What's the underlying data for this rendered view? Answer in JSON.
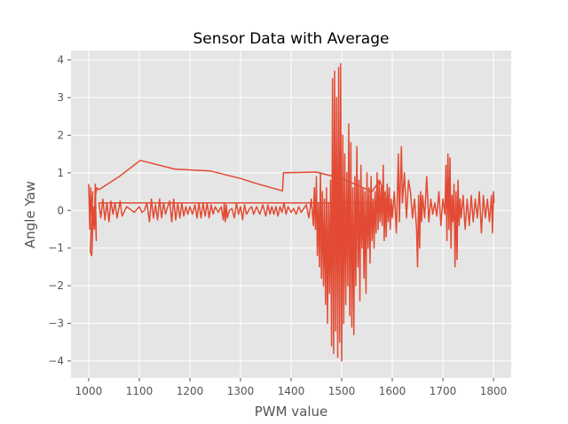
{
  "chart_data": {
    "type": "line",
    "title": "Sensor Data with Average",
    "xlabel": "PWM value",
    "ylabel": "Angle Yaw",
    "xlim": [
      965,
      1835
    ],
    "ylim": [
      -4.45,
      4.25
    ],
    "xticks": [
      1000,
      1100,
      1200,
      1300,
      1400,
      1500,
      1600,
      1700,
      1800
    ],
    "yticks": [
      -4,
      -3,
      -2,
      -1,
      0,
      1,
      2,
      3,
      4
    ],
    "grid": true,
    "legend": "none",
    "colors": {
      "line": "#e24a33",
      "plot_bg": "#e5e5e5",
      "grid": "#ffffff",
      "tick_text": "#555555"
    },
    "series": [
      {
        "points": [
          [
            1000,
            0.7
          ],
          [
            1002,
            -0.5
          ],
          [
            1004,
            0.6
          ],
          [
            1006,
            -0.2
          ],
          [
            1008,
            0.5
          ],
          [
            1003,
            -1.1
          ],
          [
            1006,
            -1.2
          ],
          [
            1009,
            0.1
          ],
          [
            1011,
            -0.5
          ],
          [
            1013,
            0.7
          ],
          [
            1015,
            -0.8
          ],
          [
            1012,
            0.3
          ],
          [
            1016,
            0.6
          ],
          [
            1020,
            0.55
          ],
          [
            1060,
            0.9
          ],
          [
            1102,
            1.33
          ],
          [
            1170,
            1.1
          ],
          [
            1240,
            1.05
          ],
          [
            1300,
            0.85
          ],
          [
            1330,
            0.72
          ],
          [
            1383,
            0.52
          ],
          [
            1385,
            1.0
          ],
          [
            1450,
            1.02
          ],
          [
            1500,
            0.85
          ],
          [
            1560,
            0.5
          ],
          [
            1575,
            0.8
          ],
          [
            1590,
            0.2
          ],
          [
            1020,
            0.2
          ],
          [
            1024,
            -0.2
          ],
          [
            1028,
            0.3
          ],
          [
            1032,
            -0.25
          ],
          [
            1036,
            0.2
          ],
          [
            1040,
            -0.3
          ],
          [
            1044,
            0.25
          ],
          [
            1048,
            -0.1
          ],
          [
            1052,
            0.2
          ],
          [
            1056,
            -0.2
          ],
          [
            1062,
            0.25
          ],
          [
            1066,
            -0.15
          ],
          [
            1075,
            0.1
          ],
          [
            1090,
            -0.05
          ],
          [
            1100,
            0.1
          ],
          [
            1105,
            -0.05
          ],
          [
            1110,
            0.0
          ],
          [
            1115,
            0.2
          ],
          [
            1120,
            -0.3
          ],
          [
            1124,
            0.3
          ],
          [
            1128,
            -0.2
          ],
          [
            1132,
            0.15
          ],
          [
            1136,
            -0.25
          ],
          [
            1140,
            0.3
          ],
          [
            1144,
            -0.2
          ],
          [
            1148,
            0.2
          ],
          [
            1152,
            -0.1
          ],
          [
            1155,
            0.05
          ],
          [
            1160,
            0.25
          ],
          [
            1164,
            -0.3
          ],
          [
            1168,
            0.3
          ],
          [
            1172,
            -0.25
          ],
          [
            1176,
            0.2
          ],
          [
            1180,
            -0.2
          ],
          [
            1184,
            0.2
          ],
          [
            1188,
            -0.15
          ],
          [
            1192,
            0.1
          ],
          [
            1196,
            -0.1
          ],
          [
            1200,
            0.1
          ],
          [
            1205,
            -0.1
          ],
          [
            1210,
            0.15
          ],
          [
            1214,
            -0.2
          ],
          [
            1218,
            0.2
          ],
          [
            1222,
            -0.2
          ],
          [
            1226,
            0.2
          ],
          [
            1230,
            -0.15
          ],
          [
            1234,
            0.2
          ],
          [
            1238,
            -0.2
          ],
          [
            1242,
            0.15
          ],
          [
            1246,
            -0.1
          ],
          [
            1250,
            0.1
          ],
          [
            1256,
            -0.05
          ],
          [
            1262,
            0.1
          ],
          [
            1266,
            -0.25
          ],
          [
            1268,
            0.2
          ],
          [
            1270,
            -0.3
          ],
          [
            1272,
            0.15
          ],
          [
            1274,
            -0.2
          ],
          [
            1278,
            0.0
          ],
          [
            1283,
            0.05
          ],
          [
            1288,
            -0.2
          ],
          [
            1292,
            0.2
          ],
          [
            1296,
            -0.1
          ],
          [
            1300,
            0.1
          ],
          [
            1304,
            -0.25
          ],
          [
            1308,
            0.15
          ],
          [
            1312,
            -0.1
          ],
          [
            1318,
            0.05
          ],
          [
            1322,
            0.1
          ],
          [
            1326,
            -0.1
          ],
          [
            1332,
            0.1
          ],
          [
            1338,
            -0.1
          ],
          [
            1344,
            0.15
          ],
          [
            1350,
            -0.15
          ],
          [
            1354,
            0.15
          ],
          [
            1358,
            -0.1
          ],
          [
            1362,
            0.1
          ],
          [
            1366,
            -0.1
          ],
          [
            1370,
            0.1
          ],
          [
            1374,
            -0.15
          ],
          [
            1378,
            0.1
          ],
          [
            1382,
            -0.05
          ],
          [
            1386,
            0.2
          ],
          [
            1390,
            -0.1
          ],
          [
            1394,
            0.1
          ],
          [
            1400,
            -0.05
          ],
          [
            1405,
            0.05
          ],
          [
            1410,
            -0.1
          ],
          [
            1415,
            0.1
          ],
          [
            1420,
            -0.05
          ],
          [
            1425,
            0.05
          ],
          [
            1430,
            0.15
          ],
          [
            1435,
            -0.2
          ],
          [
            1440,
            0.3
          ],
          [
            1444,
            -0.4
          ],
          [
            1446,
            0.6
          ],
          [
            1448,
            -0.5
          ],
          [
            1450,
            0.9
          ],
          [
            1452,
            -1.2
          ],
          [
            1454,
            0.2
          ],
          [
            1456,
            -1.5
          ],
          [
            1458,
            1.0
          ],
          [
            1460,
            -1.8
          ],
          [
            1462,
            0.5
          ],
          [
            1464,
            -2.0
          ],
          [
            1466,
            0.3
          ],
          [
            1468,
            -2.5
          ],
          [
            1470,
            0.6
          ],
          [
            1472,
            -3.0
          ],
          [
            1474,
            0.2
          ],
          [
            1476,
            -2.2
          ],
          [
            1478,
            0.8
          ],
          [
            1480,
            -3.6
          ],
          [
            1482,
            3.5
          ],
          [
            1484,
            -3.8
          ],
          [
            1486,
            3.7
          ],
          [
            1488,
            -3.2
          ],
          [
            1490,
            3.0
          ],
          [
            1492,
            -3.9
          ],
          [
            1494,
            3.8
          ],
          [
            1496,
            -3.5
          ],
          [
            1498,
            3.9
          ],
          [
            1500,
            -4.0
          ],
          [
            1502,
            2.0
          ],
          [
            1504,
            -3.0
          ],
          [
            1506,
            1.5
          ],
          [
            1508,
            -2.5
          ],
          [
            1510,
            1.0
          ],
          [
            1512,
            -2.0
          ],
          [
            1514,
            2.3
          ],
          [
            1516,
            -2.8
          ],
          [
            1518,
            1.8
          ],
          [
            1520,
            -3.1
          ],
          [
            1522,
            0.6
          ],
          [
            1524,
            -3.3
          ],
          [
            1526,
            0.9
          ],
          [
            1528,
            -2.0
          ],
          [
            1530,
            1.7
          ],
          [
            1532,
            -1.5
          ],
          [
            1534,
            0.8
          ],
          [
            1536,
            -2.4
          ],
          [
            1538,
            1.2
          ],
          [
            1540,
            -1.0
          ],
          [
            1542,
            0.6
          ],
          [
            1544,
            -1.8
          ],
          [
            1546,
            0.5
          ],
          [
            1548,
            -2.2
          ],
          [
            1550,
            1.0
          ],
          [
            1552,
            -1.0
          ],
          [
            1554,
            0.6
          ],
          [
            1556,
            -1.4
          ],
          [
            1558,
            0.9
          ],
          [
            1560,
            -0.8
          ],
          [
            1562,
            0.3
          ],
          [
            1564,
            -1.0
          ],
          [
            1566,
            0.5
          ],
          [
            1568,
            -0.6
          ],
          [
            1570,
            1.0
          ],
          [
            1572,
            -0.5
          ],
          [
            1574,
            0.8
          ],
          [
            1576,
            -0.3
          ],
          [
            1578,
            0.6
          ],
          [
            1580,
            -0.4
          ],
          [
            1582,
            1.2
          ],
          [
            1584,
            -0.8
          ],
          [
            1586,
            0.5
          ],
          [
            1588,
            -0.7
          ],
          [
            1590,
            0.7
          ],
          [
            1592,
            -0.3
          ],
          [
            1594,
            0.6
          ],
          [
            1596,
            -0.5
          ],
          [
            1598,
            0.3
          ],
          [
            1600,
            -0.2
          ],
          [
            1604,
            0.5
          ],
          [
            1608,
            -0.6
          ],
          [
            1612,
            1.5
          ],
          [
            1614,
            -0.3
          ],
          [
            1618,
            1.7
          ],
          [
            1620,
            0.2
          ],
          [
            1624,
            1.0
          ],
          [
            1628,
            -0.2
          ],
          [
            1632,
            0.8
          ],
          [
            1636,
            0.5
          ],
          [
            1640,
            -0.2
          ],
          [
            1644,
            0.3
          ],
          [
            1648,
            -0.5
          ],
          [
            1650,
            -1.5
          ],
          [
            1652,
            0.4
          ],
          [
            1654,
            -1.0
          ],
          [
            1656,
            0.5
          ],
          [
            1658,
            -0.3
          ],
          [
            1660,
            0.4
          ],
          [
            1664,
            -0.2
          ],
          [
            1668,
            0.9
          ],
          [
            1672,
            -0.3
          ],
          [
            1676,
            0.3
          ],
          [
            1680,
            -0.1
          ],
          [
            1684,
            0.2
          ],
          [
            1688,
            -0.15
          ],
          [
            1692,
            0.5
          ],
          [
            1696,
            -0.4
          ],
          [
            1700,
            0.3
          ],
          [
            1704,
            -0.1
          ],
          [
            1706,
            1.2
          ],
          [
            1708,
            -0.8
          ],
          [
            1710,
            1.5
          ],
          [
            1712,
            -0.5
          ],
          [
            1714,
            1.4
          ],
          [
            1716,
            -1.0
          ],
          [
            1718,
            0.4
          ],
          [
            1720,
            -0.3
          ],
          [
            1722,
            0.7
          ],
          [
            1724,
            -1.5
          ],
          [
            1726,
            0.5
          ],
          [
            1728,
            -1.3
          ],
          [
            1730,
            0.8
          ],
          [
            1732,
            -0.4
          ],
          [
            1734,
            0.3
          ],
          [
            1736,
            -0.2
          ],
          [
            1740,
            0.4
          ],
          [
            1744,
            -0.5
          ],
          [
            1748,
            0.3
          ],
          [
            1752,
            -0.4
          ],
          [
            1756,
            0.4
          ],
          [
            1760,
            -0.3
          ],
          [
            1764,
            0.3
          ],
          [
            1768,
            -0.2
          ],
          [
            1772,
            0.5
          ],
          [
            1776,
            -0.6
          ],
          [
            1780,
            0.4
          ],
          [
            1784,
            -0.2
          ],
          [
            1788,
            0.3
          ],
          [
            1792,
            -0.3
          ],
          [
            1796,
            0.4
          ],
          [
            1798,
            -0.6
          ],
          [
            1800,
            0.5
          ],
          [
            1801,
            0.2
          ]
        ]
      }
    ]
  }
}
